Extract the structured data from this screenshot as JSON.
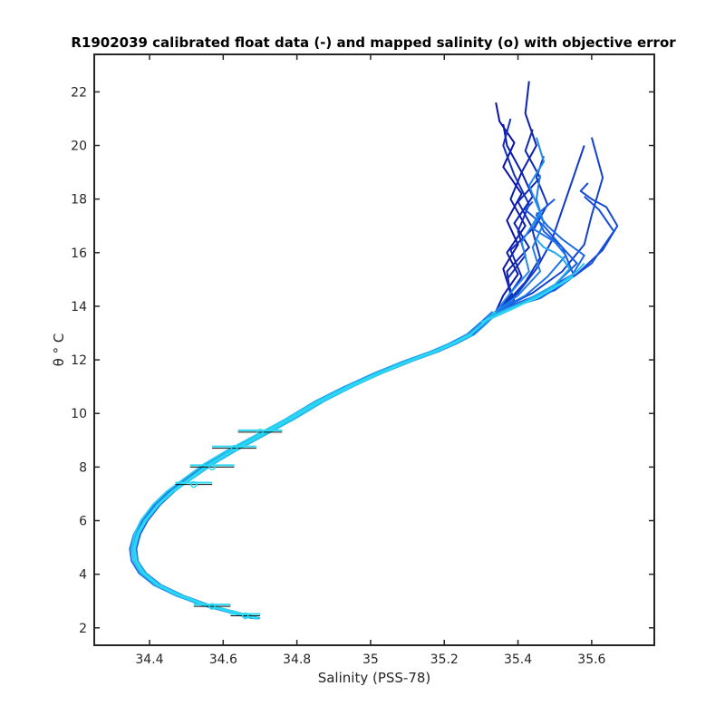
{
  "chart_data": {
    "type": "line",
    "title": "R1902039 calibrated float data (-) and mapped salinity (o) with objective error",
    "xlabel": "Salinity (PSS-78)",
    "ylabel": "θ ° C",
    "xlim": [
      34.25,
      35.77
    ],
    "ylim": [
      1.35,
      23.4
    ],
    "xticks": [
      "34.4",
      "34.6",
      "34.8",
      "35",
      "35.2",
      "35.4",
      "35.6"
    ],
    "yticks": [
      "2",
      "4",
      "6",
      "8",
      "10",
      "12",
      "14",
      "16",
      "18",
      "20",
      "22"
    ],
    "grid": false,
    "legend": "none",
    "colors": {
      "deep": "#0a12a8",
      "mid": "#1a5ee6",
      "light": "#2ad8f2"
    },
    "common_profile": {
      "x": [
        34.69,
        34.62,
        34.55,
        34.48,
        34.42,
        34.38,
        34.36,
        34.355,
        34.365,
        34.385,
        34.42,
        34.46,
        34.51,
        34.56,
        34.62,
        34.7,
        34.78,
        34.86,
        34.94,
        35.02,
        35.1,
        35.17,
        35.22,
        35.27,
        35.3,
        35.34
      ],
      "y": [
        2.35,
        2.6,
        2.85,
        3.2,
        3.6,
        4.05,
        4.5,
        4.95,
        5.5,
        6.0,
        6.6,
        7.1,
        7.6,
        8.1,
        8.6,
        9.2,
        9.8,
        10.45,
        11.0,
        11.5,
        11.95,
        12.3,
        12.6,
        12.95,
        13.3,
        13.8
      ]
    },
    "upper_profiles": [
      {
        "x": [
          35.34,
          35.38,
          35.36,
          35.4,
          35.37,
          35.41,
          35.36,
          35.39,
          35.35,
          35.34
        ],
        "y": [
          13.8,
          14.5,
          15.4,
          16.3,
          17.2,
          18.2,
          19.2,
          20.1,
          20.9,
          21.6
        ]
      },
      {
        "x": [
          35.34,
          35.36,
          35.4,
          35.37,
          35.42,
          35.38,
          35.41,
          35.37,
          35.36
        ],
        "y": [
          13.8,
          14.4,
          15.2,
          16.0,
          17.0,
          18.0,
          19.0,
          20.0,
          20.8
        ]
      },
      {
        "x": [
          35.34,
          35.38,
          35.37,
          35.43,
          35.39,
          35.44,
          35.41,
          35.45,
          35.42,
          35.43
        ],
        "y": [
          13.8,
          14.4,
          15.3,
          16.2,
          17.1,
          18.1,
          19.0,
          20.0,
          21.2,
          22.4
        ]
      },
      {
        "x": [
          35.34,
          35.37,
          35.41,
          35.38,
          35.44,
          35.4,
          35.46,
          35.42,
          35.44
        ],
        "y": [
          13.8,
          14.3,
          15.1,
          16.1,
          16.9,
          17.9,
          18.8,
          19.8,
          20.6
        ]
      },
      {
        "x": [
          35.34,
          35.39,
          35.37,
          35.42,
          35.4,
          35.43,
          35.39,
          35.36,
          35.38
        ],
        "y": [
          13.8,
          14.2,
          15.0,
          15.9,
          16.8,
          17.8,
          18.9,
          20.0,
          21.0
        ]
      },
      {
        "x": [
          35.34,
          35.38,
          35.42,
          35.46,
          35.44,
          35.48,
          35.45,
          35.47
        ],
        "y": [
          13.8,
          14.3,
          14.9,
          15.8,
          16.8,
          17.8,
          18.8,
          19.6
        ]
      },
      {
        "x": [
          35.34,
          35.4,
          35.45,
          35.49,
          35.52,
          35.55,
          35.58
        ],
        "y": [
          13.8,
          14.5,
          15.4,
          16.4,
          17.6,
          18.8,
          20.0
        ]
      },
      {
        "x": [
          35.34,
          35.44,
          35.52,
          35.58,
          35.6,
          35.63,
          35.6
        ],
        "y": [
          13.8,
          14.5,
          15.3,
          16.3,
          17.4,
          18.8,
          20.3
        ]
      },
      {
        "x": [
          35.34,
          35.46,
          35.56,
          35.63,
          35.67,
          35.64,
          35.6,
          35.57,
          35.59
        ],
        "y": [
          13.8,
          14.4,
          15.2,
          16.1,
          17.0,
          17.7,
          18.0,
          18.3,
          18.6
        ]
      },
      {
        "x": [
          35.34,
          35.5,
          35.6,
          35.66,
          35.62,
          35.58
        ],
        "y": [
          13.8,
          14.6,
          15.6,
          16.8,
          17.6,
          18.1
        ]
      },
      {
        "x": [
          35.34,
          35.45,
          35.55,
          35.52,
          35.47,
          35.42,
          35.44
        ],
        "y": [
          13.8,
          14.4,
          15.2,
          16.2,
          17.0,
          17.6,
          17.9
        ]
      },
      {
        "x": [
          35.34,
          35.43,
          35.5,
          35.56,
          35.52,
          35.47,
          35.45,
          35.5
        ],
        "y": [
          13.8,
          14.2,
          14.8,
          15.6,
          16.2,
          16.8,
          17.4,
          18.0
        ]
      },
      {
        "x": [
          35.34,
          35.46,
          35.54,
          35.58,
          35.52,
          35.48,
          35.45
        ],
        "y": [
          13.8,
          14.3,
          15.0,
          15.9,
          16.5,
          17.0,
          17.5
        ]
      },
      {
        "x": [
          35.34,
          35.42,
          35.48,
          35.53,
          35.5,
          35.44,
          35.46
        ],
        "y": [
          13.8,
          14.4,
          15.1,
          15.9,
          16.4,
          16.9,
          17.4
        ]
      },
      {
        "x": [
          35.34,
          35.4,
          35.46,
          35.44,
          35.47,
          35.45,
          35.46
        ],
        "y": [
          13.8,
          14.4,
          15.3,
          16.2,
          17.1,
          18.0,
          18.9
        ]
      },
      {
        "x": [
          35.34,
          35.38,
          35.43,
          35.41,
          35.46,
          35.43,
          35.47,
          35.45
        ],
        "y": [
          13.8,
          14.5,
          15.3,
          16.4,
          17.5,
          18.5,
          19.4,
          20.3
        ]
      }
    ],
    "light_profiles": [
      {
        "x": [
          35.32,
          35.42,
          35.5,
          35.54,
          35.52,
          35.5,
          35.47,
          35.45
        ],
        "y": [
          13.6,
          14.2,
          14.8,
          15.4,
          15.8,
          16.0,
          16.2,
          16.5
        ]
      },
      {
        "x": [
          35.32,
          35.4,
          35.47,
          35.52,
          35.56,
          35.58
        ],
        "y": [
          13.5,
          14.0,
          14.5,
          14.9,
          15.3,
          15.6
        ]
      },
      {
        "x": [
          35.3,
          35.38,
          35.45,
          35.5,
          35.55
        ],
        "y": [
          13.4,
          13.9,
          14.3,
          14.7,
          15.1
        ]
      }
    ],
    "mapped_points": [
      {
        "s": 34.66,
        "t": 2.45,
        "err": 0.04
      },
      {
        "s": 34.57,
        "t": 2.8,
        "err": 0.05
      },
      {
        "s": 34.52,
        "t": 7.35,
        "err": 0.05
      },
      {
        "s": 34.57,
        "t": 8.0,
        "err": 0.06
      },
      {
        "s": 34.63,
        "t": 8.7,
        "err": 0.06
      },
      {
        "s": 34.7,
        "t": 9.3,
        "err": 0.06
      }
    ]
  }
}
